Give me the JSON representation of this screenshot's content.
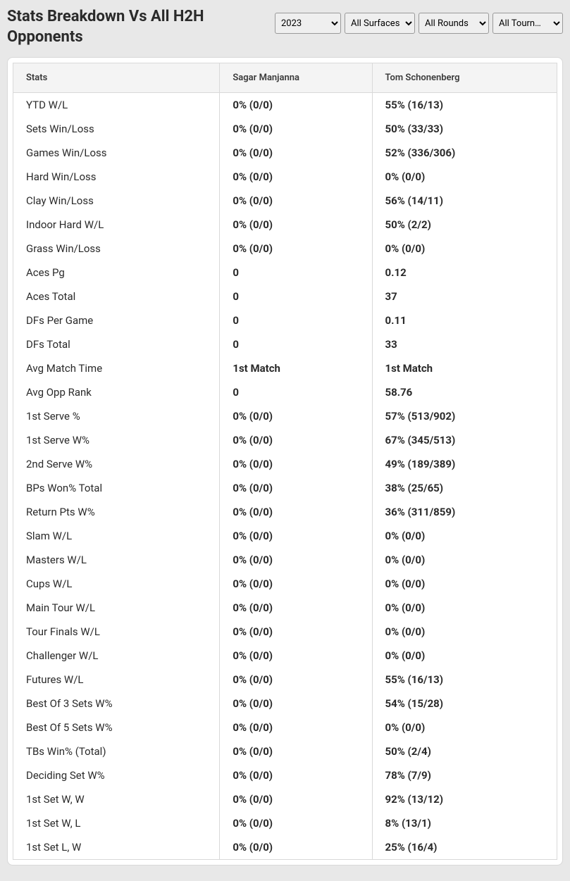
{
  "title": "Stats Breakdown Vs All H2H Opponents",
  "filters": {
    "year": "2023",
    "surface": "All Surfaces",
    "round": "All Rounds",
    "tourn": "All Tourn…"
  },
  "table": {
    "columns": [
      "Stats",
      "Sagar Manjanna",
      "Tom Schonenberg"
    ],
    "rows": [
      {
        "stat": "YTD W/L",
        "p1": "0% (0/0)",
        "p2": "55% (16/13)"
      },
      {
        "stat": "Sets Win/Loss",
        "p1": "0% (0/0)",
        "p2": "50% (33/33)"
      },
      {
        "stat": "Games Win/Loss",
        "p1": "0% (0/0)",
        "p2": "52% (336/306)"
      },
      {
        "stat": "Hard Win/Loss",
        "p1": "0% (0/0)",
        "p2": "0% (0/0)"
      },
      {
        "stat": "Clay Win/Loss",
        "p1": "0% (0/0)",
        "p2": "56% (14/11)"
      },
      {
        "stat": "Indoor Hard W/L",
        "p1": "0% (0/0)",
        "p2": "50% (2/2)"
      },
      {
        "stat": "Grass Win/Loss",
        "p1": "0% (0/0)",
        "p2": "0% (0/0)"
      },
      {
        "stat": "Aces Pg",
        "p1": "0",
        "p2": "0.12"
      },
      {
        "stat": "Aces Total",
        "p1": "0",
        "p2": "37"
      },
      {
        "stat": "DFs Per Game",
        "p1": "0",
        "p2": "0.11"
      },
      {
        "stat": "DFs Total",
        "p1": "0",
        "p2": "33"
      },
      {
        "stat": "Avg Match Time",
        "p1": "1st Match",
        "p2": "1st Match"
      },
      {
        "stat": "Avg Opp Rank",
        "p1": "0",
        "p2": "58.76"
      },
      {
        "stat": "1st Serve %",
        "p1": "0% (0/0)",
        "p2": "57% (513/902)"
      },
      {
        "stat": "1st Serve W%",
        "p1": "0% (0/0)",
        "p2": "67% (345/513)"
      },
      {
        "stat": "2nd Serve W%",
        "p1": "0% (0/0)",
        "p2": "49% (189/389)"
      },
      {
        "stat": "BPs Won% Total",
        "p1": "0% (0/0)",
        "p2": "38% (25/65)"
      },
      {
        "stat": "Return Pts W%",
        "p1": "0% (0/0)",
        "p2": "36% (311/859)"
      },
      {
        "stat": "Slam W/L",
        "p1": "0% (0/0)",
        "p2": "0% (0/0)"
      },
      {
        "stat": "Masters W/L",
        "p1": "0% (0/0)",
        "p2": "0% (0/0)"
      },
      {
        "stat": "Cups W/L",
        "p1": "0% (0/0)",
        "p2": "0% (0/0)"
      },
      {
        "stat": "Main Tour W/L",
        "p1": "0% (0/0)",
        "p2": "0% (0/0)"
      },
      {
        "stat": "Tour Finals W/L",
        "p1": "0% (0/0)",
        "p2": "0% (0/0)"
      },
      {
        "stat": "Challenger W/L",
        "p1": "0% (0/0)",
        "p2": "0% (0/0)"
      },
      {
        "stat": "Futures W/L",
        "p1": "0% (0/0)",
        "p2": "55% (16/13)"
      },
      {
        "stat": "Best Of 3 Sets W%",
        "p1": "0% (0/0)",
        "p2": "54% (15/28)"
      },
      {
        "stat": "Best Of 5 Sets W%",
        "p1": "0% (0/0)",
        "p2": "0% (0/0)"
      },
      {
        "stat": "TBs Win% (Total)",
        "p1": "0% (0/0)",
        "p2": "50% (2/4)"
      },
      {
        "stat": "Deciding Set W%",
        "p1": "0% (0/0)",
        "p2": "78% (7/9)"
      },
      {
        "stat": "1st Set W, W",
        "p1": "0% (0/0)",
        "p2": "92% (13/12)"
      },
      {
        "stat": "1st Set W, L",
        "p1": "0% (0/0)",
        "p2": "8% (13/1)"
      },
      {
        "stat": "1st Set L, W",
        "p1": "0% (0/0)",
        "p2": "25% (16/4)"
      }
    ]
  }
}
